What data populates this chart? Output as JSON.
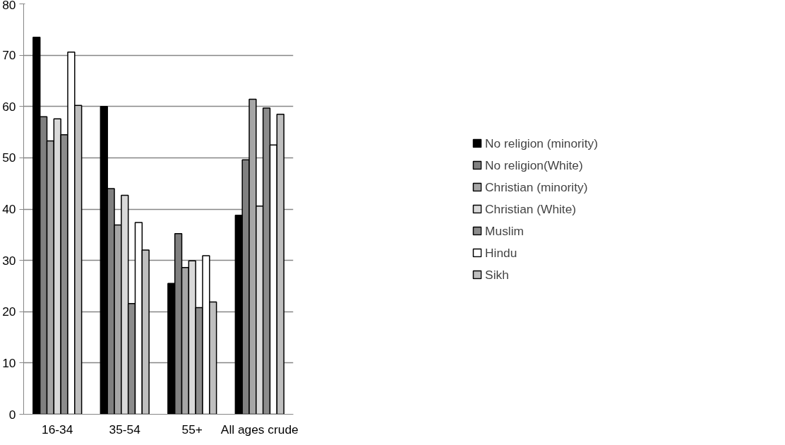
{
  "chart_data": {
    "type": "bar",
    "categories": [
      "16-34",
      "35-54",
      "55+",
      "All ages crude"
    ],
    "series": [
      {
        "name": "No religion (minority)",
        "color": "#000000",
        "values": [
          73.5,
          60,
          25.5,
          38.8
        ]
      },
      {
        "name": "No religion(White)",
        "color": "#808080",
        "values": [
          58,
          44,
          35.2,
          49.6
        ]
      },
      {
        "name": "Christian (minority)",
        "color": "#a6a6a6",
        "values": [
          53.3,
          36.9,
          28.6,
          61.4
        ]
      },
      {
        "name": "Christian (White)",
        "color": "#d9d9d9",
        "values": [
          57.6,
          42.7,
          29.9,
          40.6
        ]
      },
      {
        "name": "Muslim",
        "color": "#8c8c8c",
        "values": [
          54.5,
          21.6,
          20.8,
          59.7
        ]
      },
      {
        "name": "Hindu",
        "color": "#ffffff",
        "values": [
          70.6,
          37.4,
          30.9,
          52.5
        ]
      },
      {
        "name": "Sikh",
        "color": "#bfbfbf",
        "values": [
          60.2,
          32,
          21.9,
          58.5
        ]
      }
    ],
    "ylim": [
      0,
      80
    ],
    "yticks": [
      0,
      10,
      20,
      30,
      40,
      50,
      60,
      70,
      80
    ],
    "grid": "y",
    "legend": "right"
  }
}
